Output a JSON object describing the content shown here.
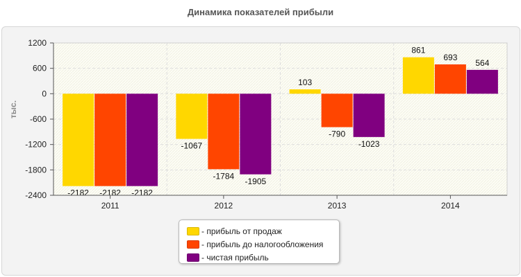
{
  "colors": {
    "sales_profit": "#ffd700",
    "pretax_profit": "#ff4500",
    "net_profit": "#800080"
  },
  "chart_data": {
    "type": "bar",
    "title": "Динамика показателей прибыли",
    "ylabel": "тыс.",
    "xlabel": "",
    "categories": [
      "2011",
      "2012",
      "2013",
      "2014"
    ],
    "series": [
      {
        "name": "- прибыль от продаж",
        "values": [
          -2182,
          -1067,
          103,
          861
        ]
      },
      {
        "name": "- прибыль до налогообложения",
        "values": [
          -2182,
          -1784,
          -790,
          693
        ]
      },
      {
        "name": "- чистая прибыль",
        "values": [
          -2182,
          -1905,
          -1023,
          564
        ]
      }
    ],
    "ylim": [
      -2400,
      1200
    ],
    "yticks": [
      1200,
      600,
      0,
      -600,
      -1200,
      -1800,
      -2400
    ],
    "grid": true,
    "legend": "bottom-center"
  }
}
